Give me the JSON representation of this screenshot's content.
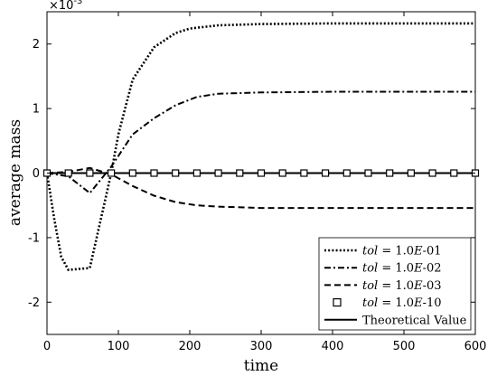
{
  "chart_data": {
    "type": "line",
    "xlabel": "time",
    "ylabel": "average mass",
    "y_multiplier": "×10",
    "y_multiplier_exp": "-3",
    "xlim": [
      0,
      600
    ],
    "ylim": [
      -2.5,
      2.5
    ],
    "xticks": [
      0,
      100,
      200,
      300,
      400,
      500,
      600
    ],
    "yticks": [
      -2,
      -1,
      0,
      1,
      2
    ],
    "grid": false,
    "legend_placement": "bottom-right",
    "series": [
      {
        "name": "tol = 1.0E-01",
        "name_italic": "tol",
        "name_rest": " = 1.0",
        "name_italic2": "E",
        "name_tail": "-01",
        "style": "dotted",
        "x": [
          0,
          10,
          20,
          30,
          60,
          90,
          100,
          120,
          150,
          180,
          200,
          240,
          300,
          400,
          500,
          600
        ],
        "y": [
          0,
          -0.7,
          -1.3,
          -1.5,
          -1.47,
          0.0,
          0.6,
          1.45,
          1.95,
          2.17,
          2.24,
          2.29,
          2.31,
          2.32,
          2.32,
          2.32
        ]
      },
      {
        "name": "tol = 1.0E-02",
        "name_italic": "tol",
        "name_rest": " = 1.0",
        "name_italic2": "E",
        "name_tail": "-02",
        "style": "dashdot",
        "x": [
          0,
          30,
          60,
          90,
          120,
          150,
          180,
          210,
          240,
          300,
          400,
          500,
          600
        ],
        "y": [
          0,
          -0.05,
          -0.31,
          0.1,
          0.6,
          0.85,
          1.05,
          1.18,
          1.23,
          1.25,
          1.26,
          1.26,
          1.26
        ]
      },
      {
        "name": "tol = 1.0E-03",
        "name_italic": "tol",
        "name_rest": " = 1.0",
        "name_italic2": "E",
        "name_tail": "-03",
        "style": "dashed",
        "x": [
          0,
          30,
          60,
          90,
          120,
          150,
          180,
          210,
          240,
          300,
          400,
          500,
          600
        ],
        "y": [
          0,
          0.02,
          0.08,
          -0.02,
          -0.2,
          -0.35,
          -0.45,
          -0.5,
          -0.52,
          -0.54,
          -0.54,
          -0.54,
          -0.54
        ]
      },
      {
        "name": "tol = 1.0E-10",
        "name_italic": "tol",
        "name_rest": " = 1.0",
        "name_italic2": "E",
        "name_tail": "-10",
        "style": "square-markers",
        "x": [
          0,
          30,
          60,
          90,
          120,
          150,
          180,
          210,
          240,
          270,
          300,
          330,
          360,
          390,
          420,
          450,
          480,
          510,
          540,
          570,
          600
        ],
        "y": [
          0,
          0,
          0,
          0,
          0,
          0,
          0,
          0,
          0,
          0,
          0,
          0,
          0,
          0,
          0,
          0,
          0,
          0,
          0,
          0,
          0
        ]
      },
      {
        "name": "Theoretical Value",
        "style": "solid",
        "x": [
          0,
          600
        ],
        "y": [
          0,
          0
        ]
      }
    ]
  }
}
